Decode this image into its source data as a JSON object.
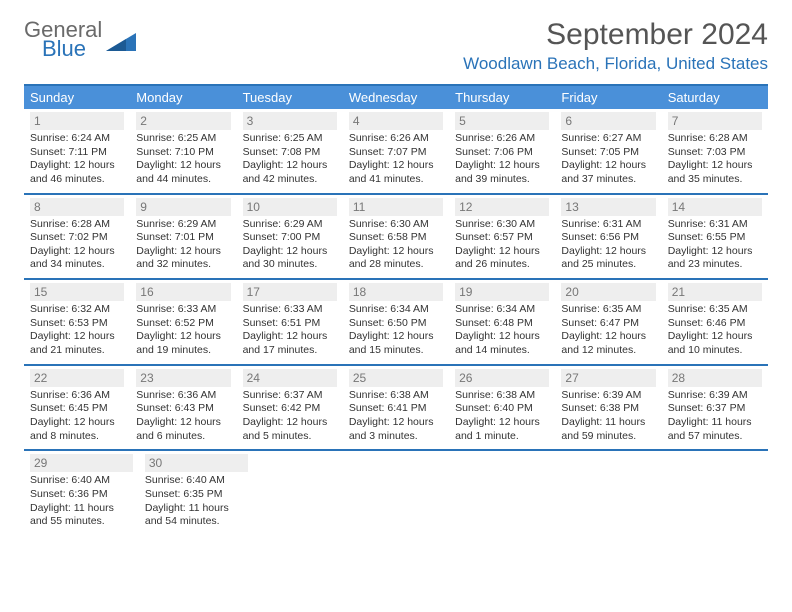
{
  "logo": {
    "text1": "General",
    "text2": "Blue"
  },
  "title": "September 2024",
  "location": "Woodlawn Beach, Florida, United States",
  "day_names": [
    "Sunday",
    "Monday",
    "Tuesday",
    "Wednesday",
    "Thursday",
    "Friday",
    "Saturday"
  ],
  "colors": {
    "header_bg": "#4a90d9",
    "border": "#2a73b8",
    "daynum_bg": "#eeeeee",
    "title_color": "#555555",
    "location_color": "#2a73b8"
  },
  "weeks": [
    [
      {
        "n": "1",
        "sr": "Sunrise: 6:24 AM",
        "ss": "Sunset: 7:11 PM",
        "d1": "Daylight: 12 hours",
        "d2": "and 46 minutes."
      },
      {
        "n": "2",
        "sr": "Sunrise: 6:25 AM",
        "ss": "Sunset: 7:10 PM",
        "d1": "Daylight: 12 hours",
        "d2": "and 44 minutes."
      },
      {
        "n": "3",
        "sr": "Sunrise: 6:25 AM",
        "ss": "Sunset: 7:08 PM",
        "d1": "Daylight: 12 hours",
        "d2": "and 42 minutes."
      },
      {
        "n": "4",
        "sr": "Sunrise: 6:26 AM",
        "ss": "Sunset: 7:07 PM",
        "d1": "Daylight: 12 hours",
        "d2": "and 41 minutes."
      },
      {
        "n": "5",
        "sr": "Sunrise: 6:26 AM",
        "ss": "Sunset: 7:06 PM",
        "d1": "Daylight: 12 hours",
        "d2": "and 39 minutes."
      },
      {
        "n": "6",
        "sr": "Sunrise: 6:27 AM",
        "ss": "Sunset: 7:05 PM",
        "d1": "Daylight: 12 hours",
        "d2": "and 37 minutes."
      },
      {
        "n": "7",
        "sr": "Sunrise: 6:28 AM",
        "ss": "Sunset: 7:03 PM",
        "d1": "Daylight: 12 hours",
        "d2": "and 35 minutes."
      }
    ],
    [
      {
        "n": "8",
        "sr": "Sunrise: 6:28 AM",
        "ss": "Sunset: 7:02 PM",
        "d1": "Daylight: 12 hours",
        "d2": "and 34 minutes."
      },
      {
        "n": "9",
        "sr": "Sunrise: 6:29 AM",
        "ss": "Sunset: 7:01 PM",
        "d1": "Daylight: 12 hours",
        "d2": "and 32 minutes."
      },
      {
        "n": "10",
        "sr": "Sunrise: 6:29 AM",
        "ss": "Sunset: 7:00 PM",
        "d1": "Daylight: 12 hours",
        "d2": "and 30 minutes."
      },
      {
        "n": "11",
        "sr": "Sunrise: 6:30 AM",
        "ss": "Sunset: 6:58 PM",
        "d1": "Daylight: 12 hours",
        "d2": "and 28 minutes."
      },
      {
        "n": "12",
        "sr": "Sunrise: 6:30 AM",
        "ss": "Sunset: 6:57 PM",
        "d1": "Daylight: 12 hours",
        "d2": "and 26 minutes."
      },
      {
        "n": "13",
        "sr": "Sunrise: 6:31 AM",
        "ss": "Sunset: 6:56 PM",
        "d1": "Daylight: 12 hours",
        "d2": "and 25 minutes."
      },
      {
        "n": "14",
        "sr": "Sunrise: 6:31 AM",
        "ss": "Sunset: 6:55 PM",
        "d1": "Daylight: 12 hours",
        "d2": "and 23 minutes."
      }
    ],
    [
      {
        "n": "15",
        "sr": "Sunrise: 6:32 AM",
        "ss": "Sunset: 6:53 PM",
        "d1": "Daylight: 12 hours",
        "d2": "and 21 minutes."
      },
      {
        "n": "16",
        "sr": "Sunrise: 6:33 AM",
        "ss": "Sunset: 6:52 PM",
        "d1": "Daylight: 12 hours",
        "d2": "and 19 minutes."
      },
      {
        "n": "17",
        "sr": "Sunrise: 6:33 AM",
        "ss": "Sunset: 6:51 PM",
        "d1": "Daylight: 12 hours",
        "d2": "and 17 minutes."
      },
      {
        "n": "18",
        "sr": "Sunrise: 6:34 AM",
        "ss": "Sunset: 6:50 PM",
        "d1": "Daylight: 12 hours",
        "d2": "and 15 minutes."
      },
      {
        "n": "19",
        "sr": "Sunrise: 6:34 AM",
        "ss": "Sunset: 6:48 PM",
        "d1": "Daylight: 12 hours",
        "d2": "and 14 minutes."
      },
      {
        "n": "20",
        "sr": "Sunrise: 6:35 AM",
        "ss": "Sunset: 6:47 PM",
        "d1": "Daylight: 12 hours",
        "d2": "and 12 minutes."
      },
      {
        "n": "21",
        "sr": "Sunrise: 6:35 AM",
        "ss": "Sunset: 6:46 PM",
        "d1": "Daylight: 12 hours",
        "d2": "and 10 minutes."
      }
    ],
    [
      {
        "n": "22",
        "sr": "Sunrise: 6:36 AM",
        "ss": "Sunset: 6:45 PM",
        "d1": "Daylight: 12 hours",
        "d2": "and 8 minutes."
      },
      {
        "n": "23",
        "sr": "Sunrise: 6:36 AM",
        "ss": "Sunset: 6:43 PM",
        "d1": "Daylight: 12 hours",
        "d2": "and 6 minutes."
      },
      {
        "n": "24",
        "sr": "Sunrise: 6:37 AM",
        "ss": "Sunset: 6:42 PM",
        "d1": "Daylight: 12 hours",
        "d2": "and 5 minutes."
      },
      {
        "n": "25",
        "sr": "Sunrise: 6:38 AM",
        "ss": "Sunset: 6:41 PM",
        "d1": "Daylight: 12 hours",
        "d2": "and 3 minutes."
      },
      {
        "n": "26",
        "sr": "Sunrise: 6:38 AM",
        "ss": "Sunset: 6:40 PM",
        "d1": "Daylight: 12 hours",
        "d2": "and 1 minute."
      },
      {
        "n": "27",
        "sr": "Sunrise: 6:39 AM",
        "ss": "Sunset: 6:38 PM",
        "d1": "Daylight: 11 hours",
        "d2": "and 59 minutes."
      },
      {
        "n": "28",
        "sr": "Sunrise: 6:39 AM",
        "ss": "Sunset: 6:37 PM",
        "d1": "Daylight: 11 hours",
        "d2": "and 57 minutes."
      }
    ],
    [
      {
        "n": "29",
        "sr": "Sunrise: 6:40 AM",
        "ss": "Sunset: 6:36 PM",
        "d1": "Daylight: 11 hours",
        "d2": "and 55 minutes."
      },
      {
        "n": "30",
        "sr": "Sunrise: 6:40 AM",
        "ss": "Sunset: 6:35 PM",
        "d1": "Daylight: 11 hours",
        "d2": "and 54 minutes."
      },
      null,
      null,
      null,
      null,
      null
    ]
  ]
}
